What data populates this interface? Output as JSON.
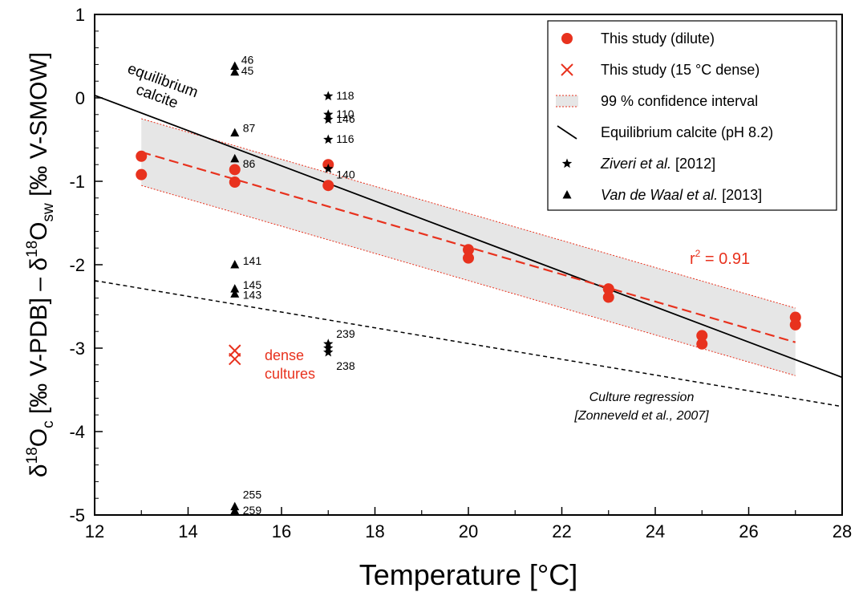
{
  "colors": {
    "red": "#e8321e",
    "band": "#e6e6e6",
    "black": "#000000"
  },
  "chart_data": {
    "type": "scatter",
    "xlabel": "Temperature [°C]",
    "ylabel": {
      "p1": "δ",
      "s1": "18",
      "p2": "O",
      "sub1": "c",
      "p3": " [‰ V-PDB] – δ",
      "s2": "18",
      "p4": "O",
      "sub2": "sw",
      "p5": " [‰ V-SMOW]"
    },
    "xlim": [
      12,
      28
    ],
    "ylim": [
      -5,
      1
    ],
    "x_ticks": [
      12,
      14,
      16,
      18,
      20,
      22,
      24,
      26,
      28
    ],
    "y_ticks": [
      1,
      0,
      -1,
      -2,
      -3,
      -4,
      -5
    ],
    "x_tick_labels": [
      "12",
      "14",
      "16",
      "18",
      "20",
      "22",
      "24",
      "26",
      "28"
    ],
    "y_tick_labels": [
      "1",
      "0",
      "-1",
      "-2",
      "-3",
      "-4",
      "-5"
    ],
    "grid": false,
    "legend_position": "top-right",
    "legend": [
      {
        "label": "This study (dilute)",
        "marker": "circle-red"
      },
      {
        "label": "This study (15 °C dense)",
        "marker": "x-red"
      },
      {
        "label": "99 % confidence interval",
        "marker": "band"
      },
      {
        "label": "Equilibrium calcite (pH 8.2)",
        "marker": "line-black"
      },
      {
        "label_italic": "Ziveri et al.",
        "label_rest": " [2012]",
        "marker": "star"
      },
      {
        "label_italic": "Van de Waal et al.",
        "label_rest": " [2013]",
        "marker": "triangle"
      }
    ],
    "series": [
      {
        "name": "This study (dilute)",
        "type": "scatter",
        "marker": "circle",
        "color": "#e8321e",
        "x": [
          13,
          13,
          15,
          15,
          17,
          17,
          20,
          20,
          23,
          23,
          25,
          25,
          27,
          27
        ],
        "y": [
          -0.7,
          -0.92,
          -0.86,
          -1.01,
          -0.8,
          -1.05,
          -1.82,
          -1.92,
          -2.29,
          -2.39,
          -2.85,
          -2.95,
          -2.63,
          -2.72
        ]
      },
      {
        "name": "This study (15 °C dense)",
        "type": "scatter",
        "marker": "x",
        "color": "#e8321e",
        "x": [
          15,
          15
        ],
        "y": [
          -3.03,
          -3.13
        ]
      },
      {
        "name": "Ziveri et al. [2012]",
        "type": "scatter",
        "marker": "star",
        "color": "#000000",
        "x": [
          17,
          17,
          17,
          17,
          17,
          17,
          17,
          17
        ],
        "y": [
          0.02,
          -0.2,
          -0.26,
          -0.5,
          -0.85,
          -2.95,
          -3.0,
          -3.05
        ],
        "labels": [
          "118",
          "110",
          "146",
          "116",
          "140",
          "239",
          "",
          "238"
        ]
      },
      {
        "name": "Van de Waal et al. [2013]",
        "type": "scatter",
        "marker": "triangle",
        "color": "#000000",
        "x": [
          15,
          15,
          15,
          15,
          15,
          15,
          15,
          15,
          15
        ],
        "y": [
          0.38,
          0.31,
          -0.42,
          -0.73,
          -2.0,
          -2.29,
          -2.35,
          -4.9,
          -4.95
        ],
        "labels": [
          "46",
          "45",
          "87",
          "86",
          "141",
          "145",
          "143",
          "255",
          "259"
        ]
      },
      {
        "name": "Equilibrium calcite (pH 8.2)",
        "type": "line",
        "style": "solid",
        "color": "#000000",
        "x": [
          12,
          28
        ],
        "y": [
          0.03,
          -3.35
        ]
      },
      {
        "name": "Regression (this study)",
        "type": "line",
        "style": "dashed",
        "color": "#e8321e",
        "x": [
          13,
          27
        ],
        "y": [
          -0.65,
          -2.93
        ]
      },
      {
        "name": "99 % confidence interval",
        "type": "band",
        "color": "#e6e6e6",
        "x": [
          13,
          27
        ],
        "upper": [
          -0.25,
          -2.52
        ],
        "lower": [
          -1.05,
          -3.33
        ]
      },
      {
        "name": "Culture regression [Zonneveld et al., 2007]",
        "type": "line",
        "style": "dashed",
        "color": "#000000",
        "x": [
          12,
          28
        ],
        "y": [
          -2.19,
          -3.7
        ]
      }
    ],
    "annotations": {
      "equilibrium_line1": "equilibrium",
      "equilibrium_line2": "calcite",
      "dense_line1": "dense",
      "dense_line2": "cultures",
      "r2_prefix": "r",
      "r2_sup": "2",
      "r2_rest": " = 0.91",
      "culture_line1": "Culture regression",
      "culture_line2": "[Zonneveld et al., 2007]"
    }
  }
}
